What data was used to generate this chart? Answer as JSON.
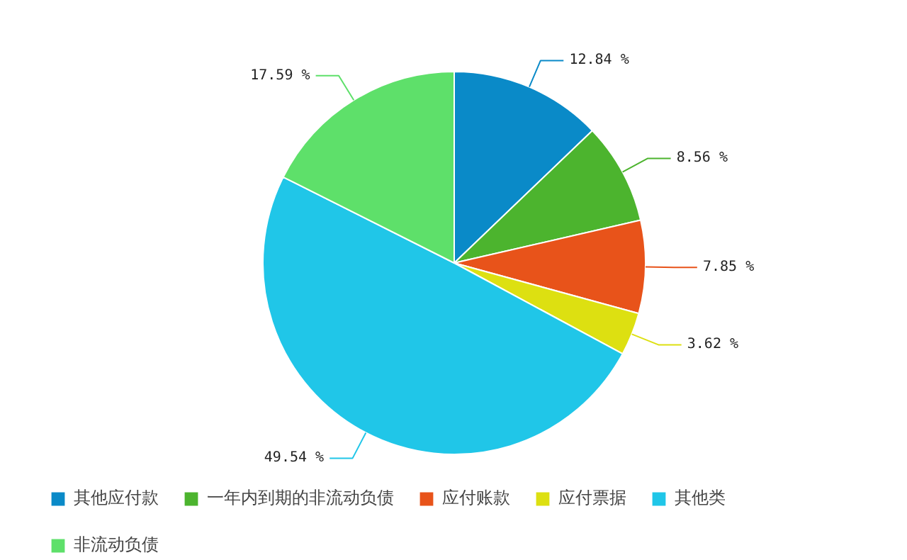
{
  "chart_data": {
    "type": "pie",
    "categories": [
      "其他应付款",
      "一年内到期的非流动负债",
      "应付账款",
      "应付票据",
      "其他类",
      "非流动负债"
    ],
    "values": [
      12.84,
      8.56,
      7.85,
      3.62,
      49.54,
      17.59
    ],
    "colors": [
      "#0a8ac8",
      "#4cb42e",
      "#e8531a",
      "#dde011",
      "#20c6e8",
      "#5ee06a"
    ],
    "value_labels": [
      "12.84 %",
      "8.56 %",
      "7.85 %",
      "3.62 %",
      "49.54 %",
      "17.59 %"
    ],
    "legend": "bottom"
  }
}
